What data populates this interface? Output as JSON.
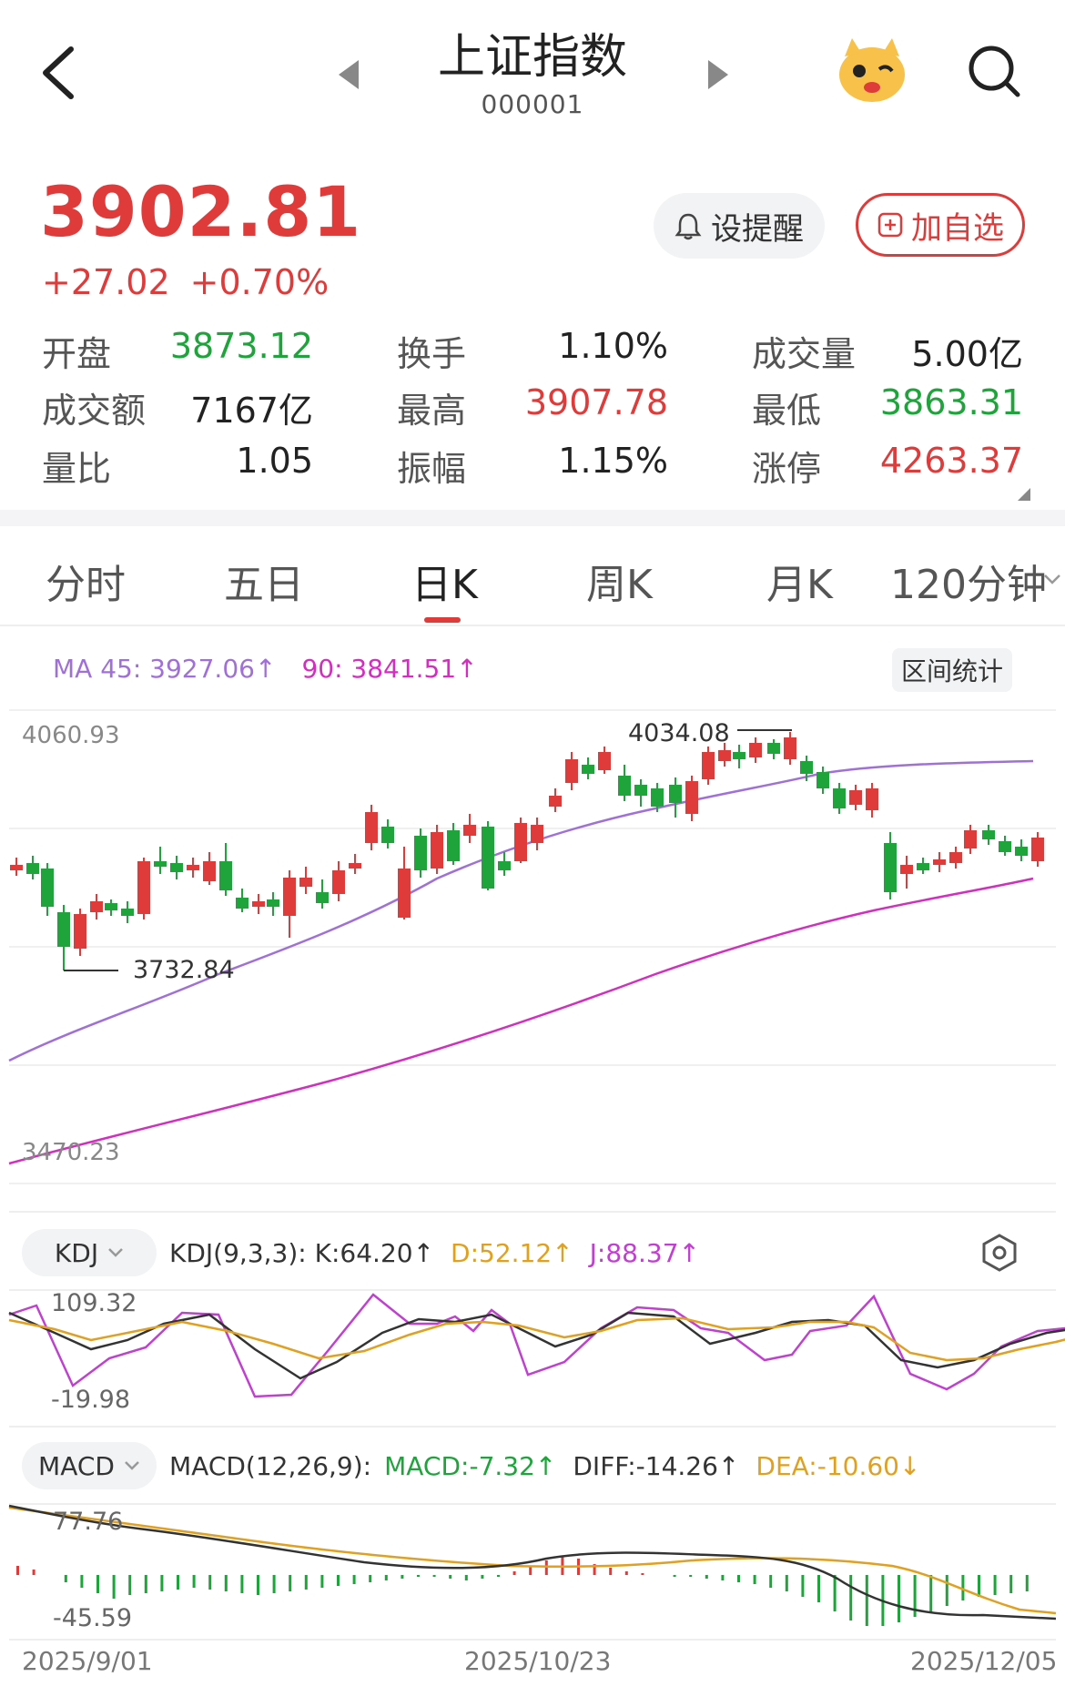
{
  "header": {
    "title": "上证指数",
    "code": "000001"
  },
  "quote": {
    "price": "3902.81",
    "change": "+27.02",
    "change_pct": "+0.70%",
    "remind_label": "设提醒",
    "add_label": "加自选"
  },
  "stats": [
    {
      "label": "开盘",
      "value": "3873.12",
      "color": "green"
    },
    {
      "label": "换手",
      "value": "1.10%",
      "color": "dark"
    },
    {
      "label": "成交量",
      "value": "5.00亿",
      "color": "dark"
    },
    {
      "label": "成交额",
      "value": "7167亿",
      "color": "dark"
    },
    {
      "label": "最高",
      "value": "3907.78",
      "color": "red"
    },
    {
      "label": "最低",
      "value": "3863.31",
      "color": "green"
    },
    {
      "label": "量比",
      "value": "1.05",
      "color": "dark"
    },
    {
      "label": "振幅",
      "value": "1.15%",
      "color": "dark"
    },
    {
      "label": "涨停",
      "value": "4263.37",
      "color": "red"
    }
  ],
  "tabs": [
    {
      "label": "分时"
    },
    {
      "label": "五日"
    },
    {
      "label": "日K",
      "active": true
    },
    {
      "label": "周K"
    },
    {
      "label": "月K"
    },
    {
      "label": "120分钟"
    }
  ],
  "kline": {
    "ma45": "MA 45: 3927.06↑",
    "ma90": "90: 3841.51↑",
    "range_stats_label": "区间统计",
    "axis_top": "4060.93",
    "axis_bottom": "3470.23",
    "max_label": "4034.08",
    "min_label": "3732.84",
    "up_color": "#e03b3b",
    "down_color": "#1fa43c",
    "ma45_color": "#a070d8",
    "ma90_color": "#d42ec0"
  },
  "kdj": {
    "pill_label": "KDJ",
    "params": "KDJ(9,3,3):",
    "k": "K:64.20↑",
    "d": "D:52.12↑",
    "j": "J:88.37↑",
    "axis_top": "109.32",
    "axis_bottom": "-19.98"
  },
  "macd": {
    "pill_label": "MACD",
    "params": "MACD(12,26,9):",
    "macd": "MACD:-7.32↑",
    "diff": "DIFF:-14.26↑",
    "dea": "DEA:-10.60↓",
    "axis_top": "77.76",
    "axis_bottom": "-45.59"
  },
  "dates": [
    "2025/9/01",
    "2025/10/23",
    "2025/12/05"
  ]
}
